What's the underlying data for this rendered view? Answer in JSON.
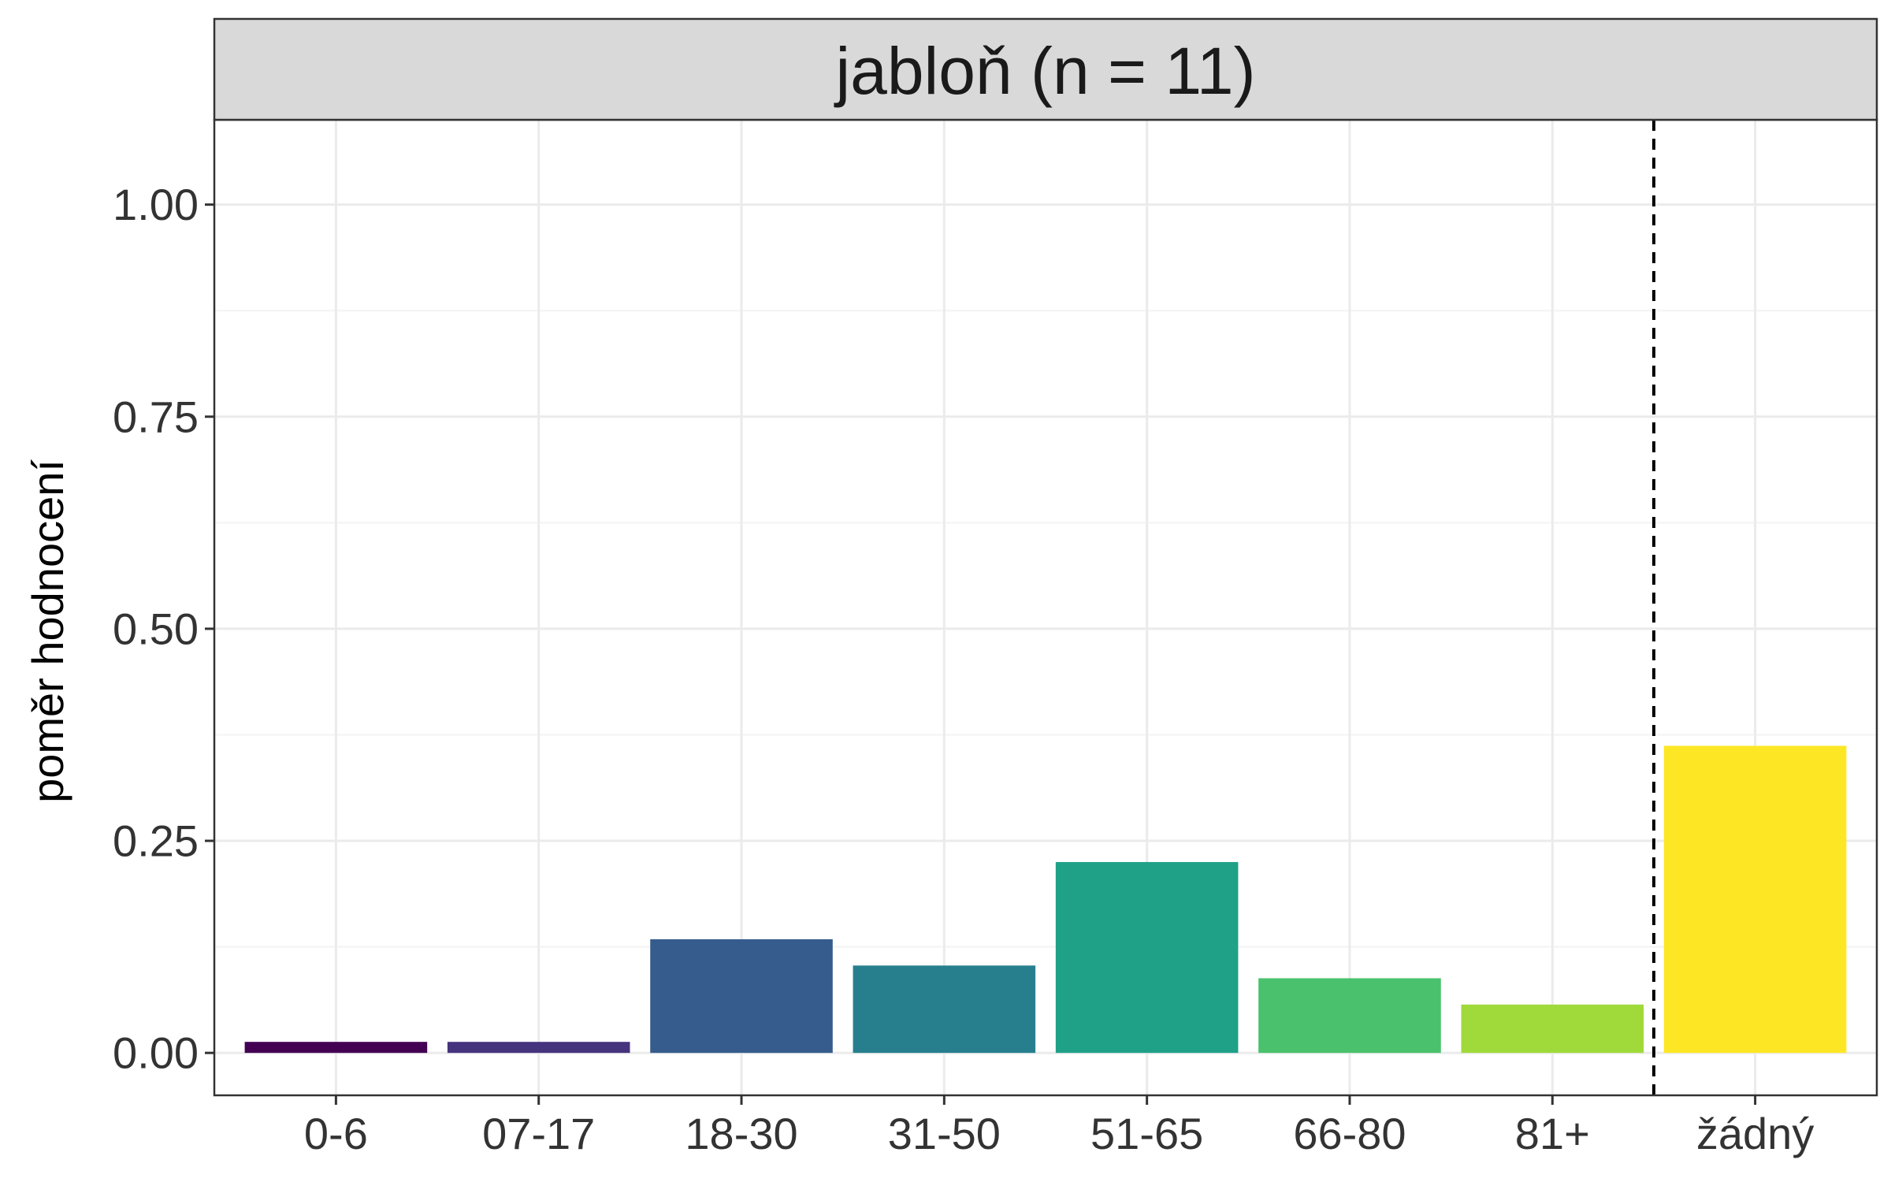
{
  "chart_data": {
    "type": "bar",
    "panel_title": "jabloň (n = 11)",
    "ylabel": "poměr hodnocení",
    "xlabel": "",
    "categories": [
      "0-6",
      "07-17",
      "18-30",
      "31-50",
      "51-65",
      "66-80",
      "81+",
      "žádný"
    ],
    "values": [
      0.013,
      0.013,
      0.134,
      0.103,
      0.225,
      0.088,
      0.057,
      0.362
    ],
    "colors": [
      "#440154",
      "#46337E",
      "#365C8D",
      "#277F8E",
      "#1FA187",
      "#4AC16D",
      "#9FDA3A",
      "#FDE725"
    ],
    "ylim": [
      -0.05,
      1.1
    ],
    "yticks": [
      0,
      0.25,
      0.5,
      0.75,
      1.0
    ],
    "ytick_labels": [
      "0.00",
      "0.25",
      "0.50",
      "0.75",
      "1.00"
    ],
    "separator_between": [
      "81+",
      "žádný"
    ],
    "grid": true,
    "legend": "none",
    "theme": {
      "panel_border": "#333333",
      "strip_fill": "#D9D9D9",
      "grid_major": "#EBEBEB",
      "grid_minor": "#F3F3F3",
      "separator": "#000000"
    }
  }
}
